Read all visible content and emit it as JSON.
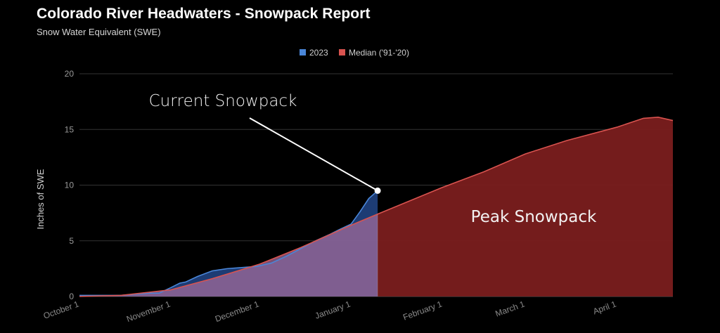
{
  "header": {
    "title": "Colorado River Headwaters - Snowpack Report",
    "subtitle": "Snow Water Equivalent (SWE)"
  },
  "chart_data": {
    "type": "area",
    "title": "Colorado River Headwaters - Snowpack Report",
    "subtitle": "Snow Water Equivalent (SWE)",
    "ylabel": "Inches of SWE",
    "xlabel": "",
    "ylim": [
      0,
      20
    ],
    "yticks": [
      0,
      5,
      10,
      15,
      20
    ],
    "xlim": [
      "2022-10-01",
      "2023-04-20"
    ],
    "xticks": [
      {
        "date": "2022-10-01",
        "label": "October 1"
      },
      {
        "date": "2022-11-01",
        "label": "November 1"
      },
      {
        "date": "2022-12-01",
        "label": "December 1"
      },
      {
        "date": "2023-01-01",
        "label": "January 1"
      },
      {
        "date": "2023-02-01",
        "label": "February 1"
      },
      {
        "date": "2023-03-01",
        "label": "March 1"
      },
      {
        "date": "2023-04-01",
        "label": "April 1"
      }
    ],
    "grid": true,
    "legend_position": "top",
    "colors": {
      "series_2023": "#4a86d8",
      "series_median": "#d9534f"
    },
    "series": [
      {
        "name": "2023",
        "x": [
          "2022-10-01",
          "2022-10-05",
          "2022-10-10",
          "2022-10-15",
          "2022-10-20",
          "2022-10-25",
          "2022-10-28",
          "2022-11-01",
          "2022-11-04",
          "2022-11-06",
          "2022-11-10",
          "2022-11-15",
          "2022-11-20",
          "2022-11-25",
          "2022-11-30",
          "2022-12-05",
          "2022-12-10",
          "2022-12-15",
          "2022-12-20",
          "2022-12-25",
          "2022-12-28",
          "2023-01-01",
          "2023-01-04",
          "2023-01-07",
          "2023-01-10"
        ],
        "values": [
          0.1,
          0.1,
          0.1,
          0.1,
          0.2,
          0.3,
          0.3,
          0.8,
          1.2,
          1.3,
          1.8,
          2.3,
          2.5,
          2.6,
          2.7,
          3.0,
          3.6,
          4.3,
          5.0,
          5.6,
          6.0,
          6.5,
          7.6,
          8.8,
          9.5
        ]
      },
      {
        "name": "Median ('91-'20)",
        "x": [
          "2022-10-01",
          "2022-10-15",
          "2022-11-01",
          "2022-11-15",
          "2022-12-01",
          "2022-12-15",
          "2023-01-01",
          "2023-01-10",
          "2023-02-01",
          "2023-02-15",
          "2023-03-01",
          "2023-03-15",
          "2023-04-01",
          "2023-04-10",
          "2023-04-15",
          "2023-04-20"
        ],
        "values": [
          0.0,
          0.1,
          0.6,
          1.6,
          2.9,
          4.4,
          6.4,
          7.4,
          9.8,
          11.2,
          12.8,
          14.0,
          15.2,
          16.0,
          16.1,
          15.8
        ]
      }
    ],
    "annotations": [
      {
        "text": "Current Snowpack",
        "x": "2023-01-10",
        "y": 9.5
      },
      {
        "text": "Peak Snowpack"
      }
    ]
  }
}
